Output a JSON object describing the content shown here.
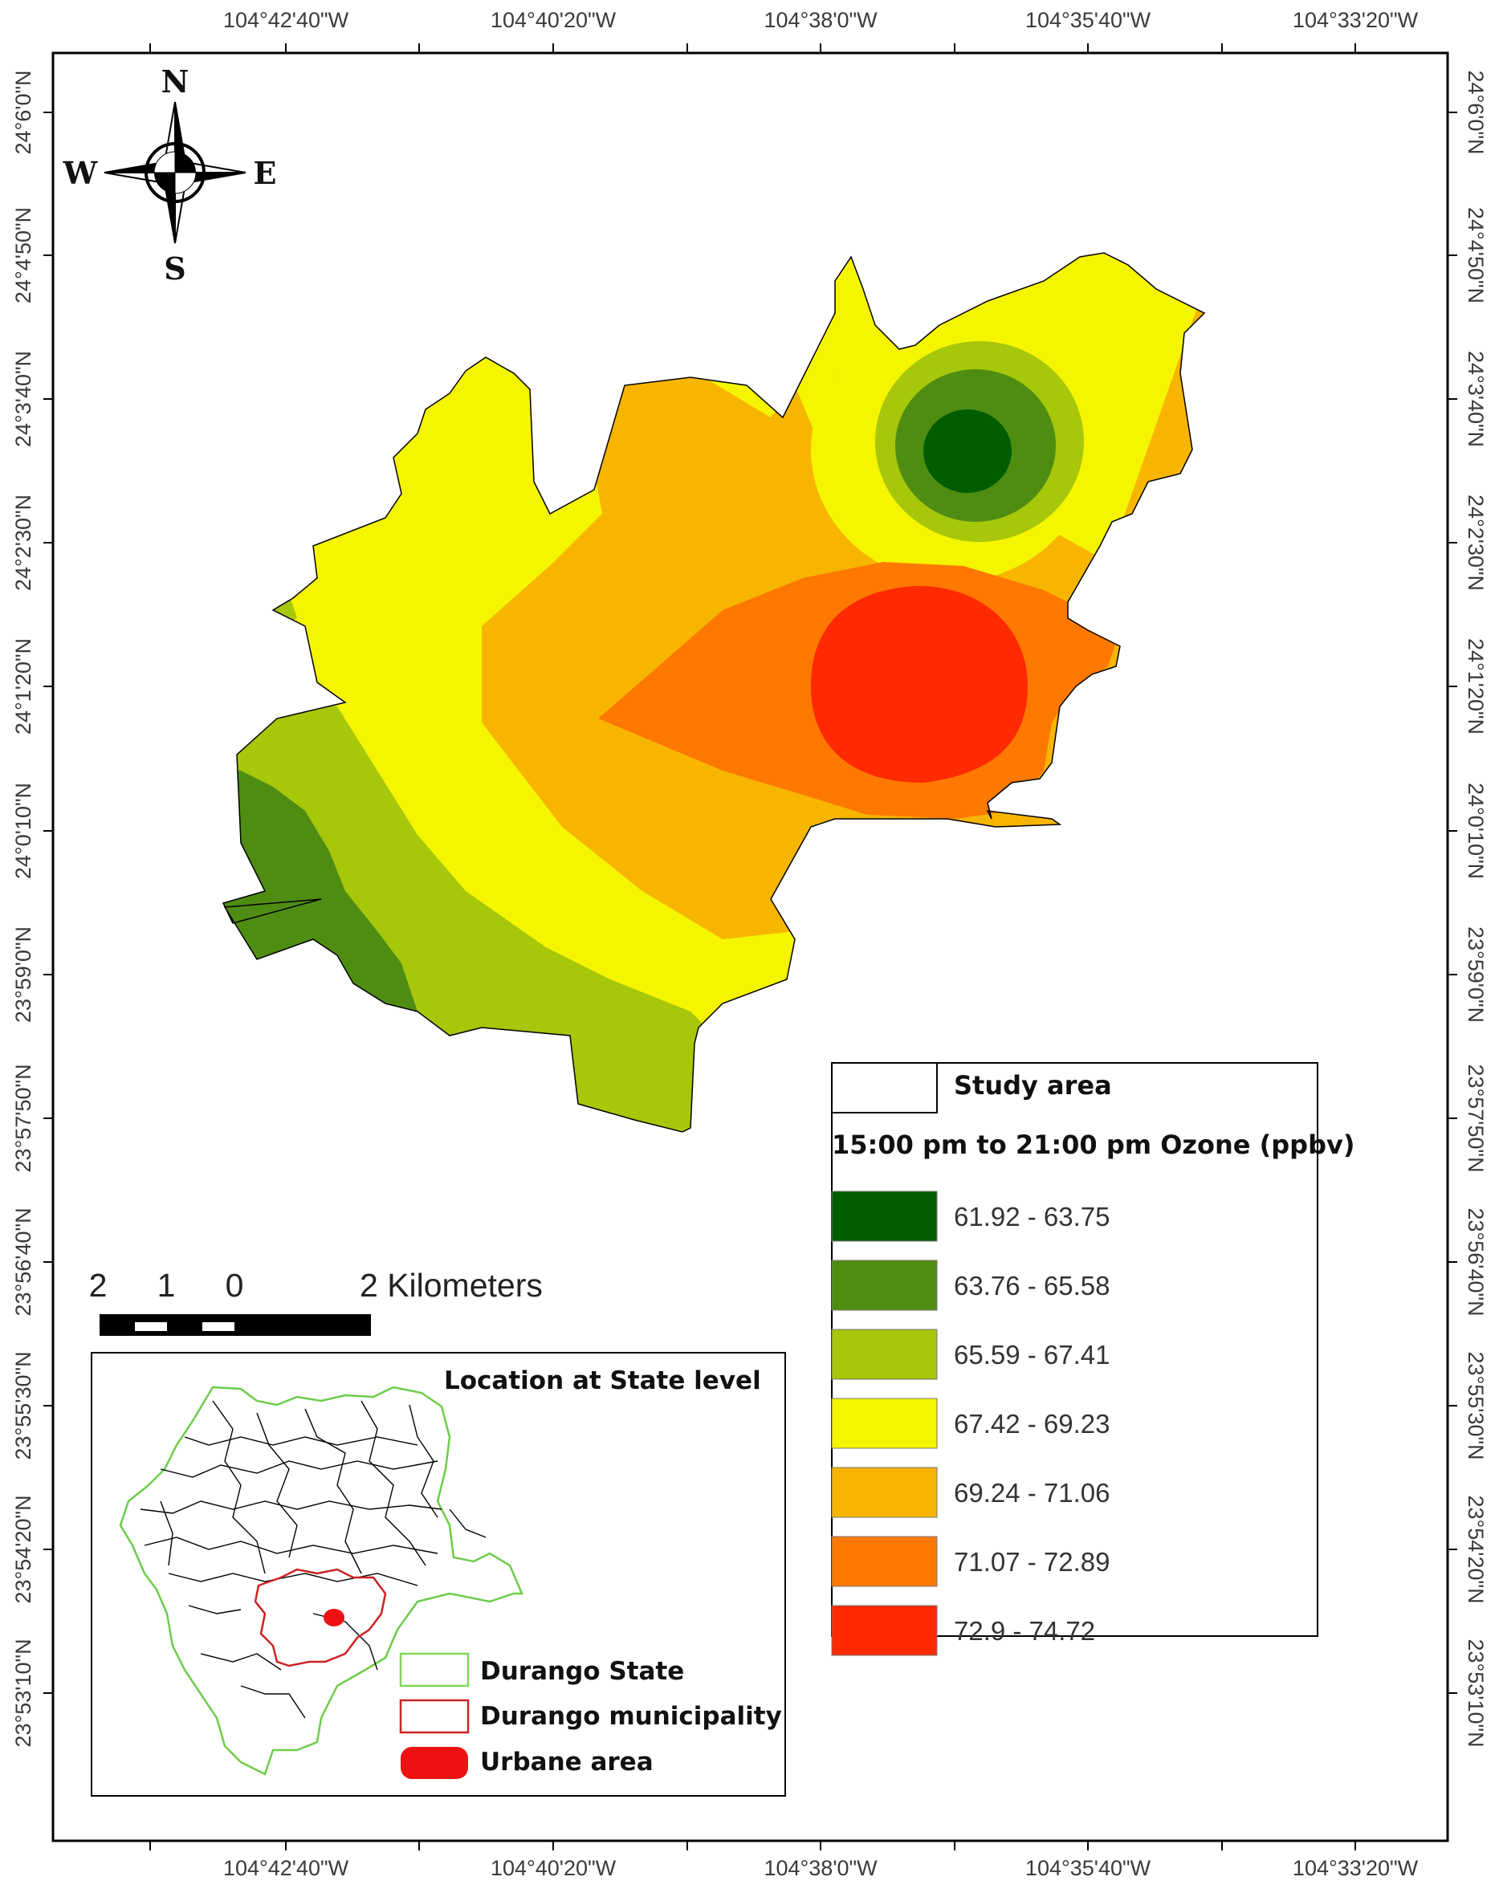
{
  "map": {
    "graticule": {
      "longitude_labels": [
        "104°42'40\"W",
        "104°40'20\"W",
        "104°38'0\"W",
        "104°35'40\"W",
        "104°33'20\"W"
      ],
      "latitude_labels": [
        "24°6'0\"N",
        "24°4'50\"N",
        "24°3'40\"N",
        "24°2'30\"N",
        "24°1'20\"N",
        "24°0'10\"N",
        "23°59'0\"N",
        "23°57'50\"N",
        "23°56'40\"N",
        "23°55'30\"N",
        "23°54'20\"N",
        "23°53'10\"N"
      ]
    },
    "north_arrow": {
      "n": "N",
      "s": "S",
      "e": "E",
      "w": "W"
    },
    "scale_bar": {
      "labels": [
        "2",
        "1",
        "0",
        "2 Kilometers"
      ]
    },
    "legend": {
      "study_area_label": "Study area",
      "title": "15:00 pm to 21:00 pm Ozone (ppbv)",
      "classes": [
        {
          "label": "61.92 - 63.75",
          "color": "#005d00"
        },
        {
          "label": "63.76 - 65.58",
          "color": "#4e8d12"
        },
        {
          "label": "65.59 - 67.41",
          "color": "#a6c70a"
        },
        {
          "label": "67.42 - 69.23",
          "color": "#f5f500"
        },
        {
          "label": "69.24 - 71.06",
          "color": "#f7b500"
        },
        {
          "label": "71.07 - 72.89",
          "color": "#ff7800"
        },
        {
          "label": "72.9 - 74.72",
          "color": "#ff2a00"
        }
      ]
    },
    "inset": {
      "title": "Location at State level",
      "legend": [
        {
          "label": "Durango State",
          "color": "#7fd65a"
        },
        {
          "label": "Durango municipality",
          "color": "#cc2222"
        },
        {
          "label": "Urbane area",
          "color": "#ee1111"
        }
      ]
    }
  }
}
